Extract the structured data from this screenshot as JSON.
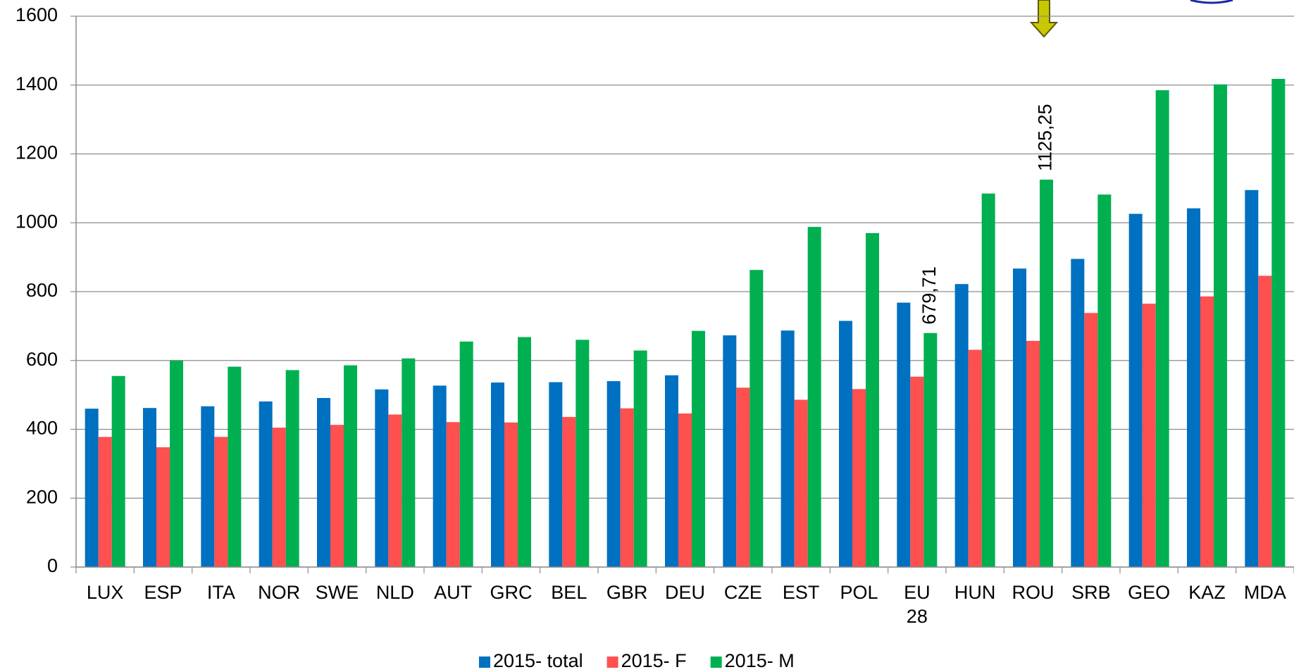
{
  "chart_data": {
    "type": "bar",
    "categories": [
      "LUX",
      "ESP",
      "ITA",
      "NOR",
      "SWE",
      "NLD",
      "AUT",
      "GRC",
      "BEL",
      "GBR",
      "DEU",
      "CZE",
      "EST",
      "POL",
      "EU 28",
      "HUN",
      "ROU",
      "SRB",
      "GEO",
      "KAZ",
      "MDA"
    ],
    "series": [
      {
        "name": "2015- total",
        "color": "#0070c0",
        "values": [
          460,
          462,
          467,
          481,
          491,
          516,
          527,
          536,
          537,
          540,
          557,
          673,
          687,
          715,
          768,
          822,
          867,
          895,
          1026,
          1042,
          1095
        ]
      },
      {
        "name": "2015- F",
        "color": "#ff5050",
        "values": [
          378,
          348,
          378,
          405,
          413,
          443,
          421,
          420,
          436,
          461,
          446,
          521,
          486,
          517,
          553,
          631,
          657,
          738,
          765,
          786,
          846
        ]
      },
      {
        "name": "2015- M",
        "color": "#00b050",
        "values": [
          555,
          600,
          582,
          572,
          586,
          606,
          655,
          668,
          660,
          629,
          686,
          863,
          988,
          970,
          679.71,
          1085,
          1125.25,
          1082,
          1385,
          1402,
          1418
        ],
        "value_labels": [
          null,
          null,
          null,
          null,
          null,
          null,
          null,
          null,
          null,
          null,
          null,
          null,
          null,
          null,
          "679,71",
          null,
          "1125,25",
          null,
          null,
          null,
          null
        ]
      }
    ],
    "ylim": [
      0,
      1600
    ],
    "yticks": [
      0,
      200,
      400,
      600,
      800,
      1000,
      1200,
      1400,
      1600
    ],
    "grid": true,
    "legend": "bottom"
  }
}
